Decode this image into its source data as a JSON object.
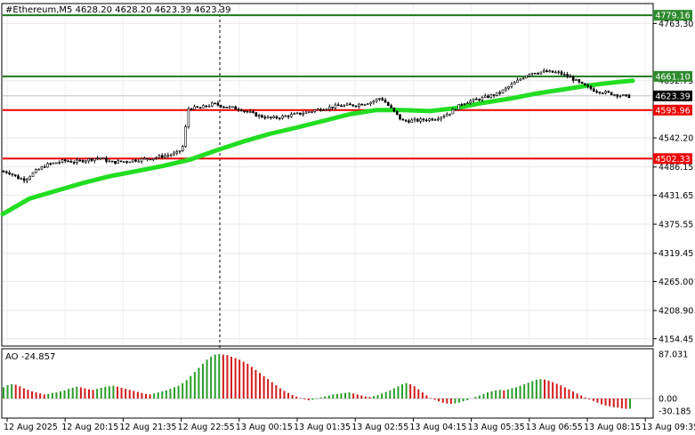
{
  "header": {
    "symbol_line": "#Ethereum,M5  4628.20 4628.20 4623.39 4623.39"
  },
  "price_axis": {
    "ticks": [
      "4763.30",
      "4652.75",
      "4542.20",
      "4486.15",
      "4431.65",
      "4375.55",
      "4319.45",
      "4265.00",
      "4208.90",
      "4154.45"
    ],
    "tick_values": [
      4763.3,
      4652.75,
      4542.2,
      4486.15,
      4431.65,
      4375.55,
      4319.45,
      4265.0,
      4208.9,
      4154.45
    ],
    "range": [
      4142,
      4800
    ]
  },
  "levels": [
    {
      "label": "4779.16",
      "value": 4779.16,
      "color": "#1f7a1f",
      "badge_bg": "#2e8b2e",
      "badge_fg": "#ffffff"
    },
    {
      "label": "4661.10",
      "value": 4661.1,
      "color": "#1f7a1f",
      "badge_bg": "#2e8b2e",
      "badge_fg": "#ffffff"
    },
    {
      "label": "4595.96",
      "value": 4595.96,
      "color": "#ee0000",
      "badge_bg": "#ee0000",
      "badge_fg": "#ffffff"
    },
    {
      "label": "4502.33",
      "value": 4502.33,
      "color": "#ee0000",
      "badge_bg": "#ee0000",
      "badge_fg": "#ffffff"
    }
  ],
  "current_price": {
    "label": "4623.39",
    "value": 4623.39,
    "badge_bg": "#000000",
    "badge_fg": "#ffffff"
  },
  "ao": {
    "label": "AO -24.857",
    "ticks": [
      "87.031",
      "0.00",
      "-30.185"
    ],
    "tick_values": [
      87.031,
      0,
      -30.185
    ],
    "range": [
      -32,
      92
    ],
    "up_color": "#2a9d2a",
    "down_color": "#d11a1a"
  },
  "time_axis": {
    "labels": [
      "12 Aug 2025",
      "12 Aug 20:15",
      "12 Aug 21:35",
      "12 Aug 22:55",
      "13 Aug 00:15",
      "13 Aug 01:35",
      "13 Aug 02:55",
      "13 Aug 04:15",
      "13 Aug 05:35",
      "13 Aug 06:55",
      "13 Aug 08:15",
      "13 Aug 09:35"
    ]
  },
  "chart_data": {
    "type": "candlestick",
    "series": [
      {
        "name": "#Ethereum,M5",
        "style": "ohlc-bars"
      },
      {
        "style": "moving-average",
        "color": "#22dd22"
      },
      {
        "name": "AO",
        "style": "histogram",
        "values": [
          22,
          26,
          28,
          27,
          24,
          20,
          17,
          14,
          12,
          10,
          8,
          9,
          11,
          12,
          14,
          16,
          19,
          21,
          23,
          22,
          20,
          18,
          17,
          19,
          21,
          23,
          24,
          25,
          23,
          21,
          19,
          17,
          15,
          13,
          11,
          9,
          8,
          10,
          12,
          14,
          16,
          19,
          22,
          25,
          30,
          36,
          44,
          52,
          60,
          68,
          76,
          82,
          86,
          87,
          86,
          85,
          82,
          79,
          76,
          72,
          68,
          62,
          56,
          50,
          44,
          38,
          32,
          26,
          20,
          15,
          11,
          7,
          4,
          1,
          -2,
          -4,
          -3,
          -1,
          2,
          4,
          6,
          8,
          9,
          10,
          11,
          12,
          10,
          8,
          6,
          4,
          3,
          5,
          7,
          10,
          13,
          16,
          20,
          24,
          28,
          30,
          28,
          24,
          18,
          12,
          6,
          1,
          -3,
          -7,
          -10,
          -12,
          -13,
          -12,
          -10,
          -7,
          -4,
          0,
          3,
          6,
          9,
          12,
          14,
          16,
          17,
          16,
          18,
          20,
          22,
          25,
          28,
          31,
          34,
          37,
          38,
          37,
          35,
          32,
          29,
          26,
          22,
          18,
          14,
          10,
          6,
          2,
          -2,
          -6,
          -10,
          -14,
          -17,
          -19,
          -21,
          -22,
          -24,
          -25,
          -24.857
        ]
      }
    ],
    "price_axis_range": [
      4142,
      4800
    ],
    "ao_axis_range": [
      -30.185,
      87.031
    ],
    "time_labels": [
      "12 Aug 2025",
      "12 Aug 20:15",
      "12 Aug 21:35",
      "12 Aug 22:55",
      "13 Aug 00:15",
      "13 Aug 01:35",
      "13 Aug 02:55",
      "13 Aug 04:15",
      "13 Aug 05:35",
      "13 Aug 06:55",
      "13 Aug 08:15",
      "13 Aug 09:35"
    ],
    "grid": true
  }
}
